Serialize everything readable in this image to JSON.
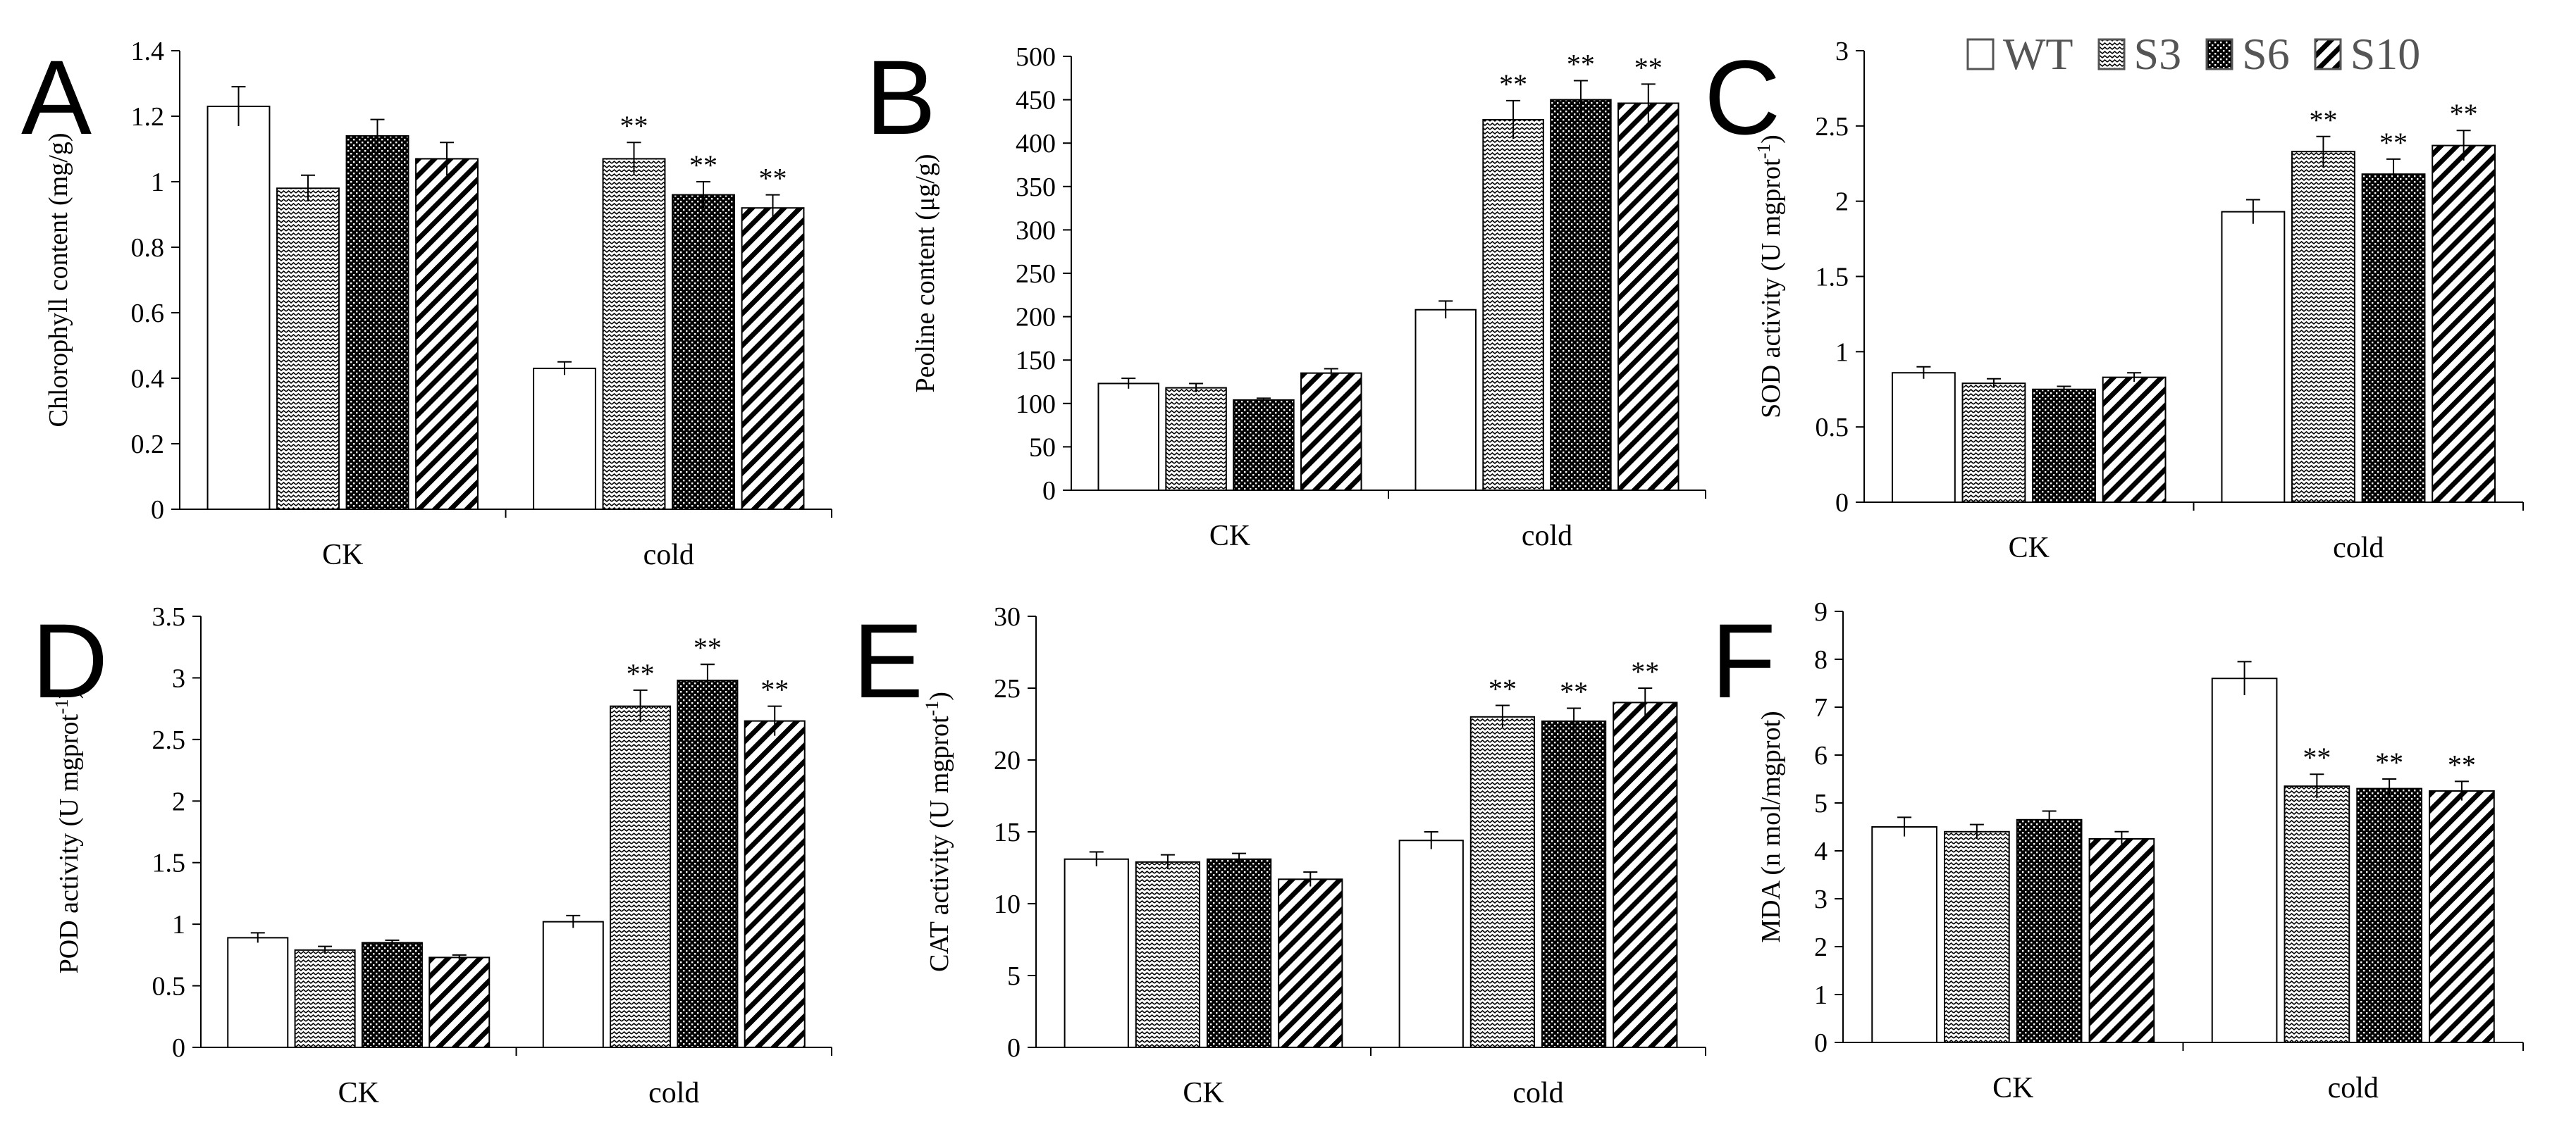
{
  "legend": [
    {
      "name": "WT",
      "pattern": "pat-wt"
    },
    {
      "name": "S3",
      "pattern": "pat-s3"
    },
    {
      "name": "S6",
      "pattern": "pat-s6"
    },
    {
      "name": "S10",
      "pattern": "pat-s10"
    }
  ],
  "colors": {
    "axis": "#000000",
    "bar_stroke": "#000000",
    "text": "#000000",
    "legend_text": "#555555"
  },
  "chart_data": [
    {
      "panel": "A",
      "type": "bar",
      "title": "",
      "ylabel": "Chlorophyll content (mg/g)",
      "xlabel": "",
      "categories": [
        "CK",
        "cold"
      ],
      "ylim": [
        0,
        1.4
      ],
      "yticks": [
        0,
        0.2,
        0.4,
        0.6,
        0.8,
        1,
        1.2,
        1.4
      ],
      "ytick_labels": [
        "0",
        "0.2",
        "0.4",
        "0.6",
        "0.8",
        "1",
        "1.2",
        "1.4"
      ],
      "series": [
        {
          "name": "WT",
          "values": [
            1.23,
            0.43
          ],
          "errors": [
            0.06,
            0.02
          ]
        },
        {
          "name": "S3",
          "values": [
            0.98,
            1.07
          ],
          "errors": [
            0.04,
            0.05
          ]
        },
        {
          "name": "S6",
          "values": [
            1.14,
            0.96
          ],
          "errors": [
            0.05,
            0.04
          ]
        },
        {
          "name": "S10",
          "values": [
            1.07,
            0.92
          ],
          "errors": [
            0.05,
            0.04
          ]
        }
      ],
      "significance": [
        [
          "",
          ""
        ],
        [
          "",
          "**"
        ],
        [
          "",
          "**"
        ],
        [
          "",
          "**"
        ]
      ]
    },
    {
      "panel": "B",
      "type": "bar",
      "title": "",
      "ylabel": "Peoline content (μg/g)",
      "xlabel": "",
      "categories": [
        "CK",
        "cold"
      ],
      "ylim": [
        0,
        500
      ],
      "yticks": [
        0,
        50,
        100,
        150,
        200,
        250,
        300,
        350,
        400,
        450,
        500
      ],
      "ytick_labels": [
        "0",
        "50",
        "100",
        "150",
        "200",
        "250",
        "300",
        "350",
        "400",
        "450",
        "500"
      ],
      "series": [
        {
          "name": "WT",
          "values": [
            123,
            208
          ],
          "errors": [
            6,
            10
          ]
        },
        {
          "name": "S3",
          "values": [
            118,
            427
          ],
          "errors": [
            5,
            22
          ]
        },
        {
          "name": "S6",
          "values": [
            104,
            450
          ],
          "errors": [
            2,
            22
          ]
        },
        {
          "name": "S10",
          "values": [
            135,
            446
          ],
          "errors": [
            5,
            22
          ]
        }
      ],
      "significance": [
        [
          "",
          ""
        ],
        [
          "",
          "**"
        ],
        [
          "",
          "**"
        ],
        [
          "",
          "**"
        ]
      ]
    },
    {
      "panel": "C",
      "type": "bar",
      "title": "",
      "ylabel": "SOD activity (U mgprot",
      "ylabel_sup": "-1",
      "ylabel_end": ")",
      "xlabel": "",
      "categories": [
        "CK",
        "cold"
      ],
      "ylim": [
        0,
        3
      ],
      "yticks": [
        0,
        0.5,
        1,
        1.5,
        2,
        2.5,
        3
      ],
      "ytick_labels": [
        "0",
        "0.5",
        "1",
        "1.5",
        "2",
        "2.5",
        "3"
      ],
      "series": [
        {
          "name": "WT",
          "values": [
            0.86,
            1.93
          ],
          "errors": [
            0.04,
            0.08
          ]
        },
        {
          "name": "S3",
          "values": [
            0.79,
            2.33
          ],
          "errors": [
            0.03,
            0.1
          ]
        },
        {
          "name": "S6",
          "values": [
            0.75,
            2.18
          ],
          "errors": [
            0.02,
            0.1
          ]
        },
        {
          "name": "S10",
          "values": [
            0.83,
            2.37
          ],
          "errors": [
            0.03,
            0.1
          ]
        }
      ],
      "significance": [
        [
          "",
          ""
        ],
        [
          "",
          "**"
        ],
        [
          "",
          "**"
        ],
        [
          "",
          "**"
        ]
      ]
    },
    {
      "panel": "D",
      "type": "bar",
      "title": "",
      "ylabel": "POD activity (U mgprot",
      "ylabel_sup": "-1",
      "ylabel_end": ")",
      "xlabel": "",
      "categories": [
        "CK",
        "cold"
      ],
      "ylim": [
        0,
        3.5
      ],
      "yticks": [
        0,
        0.5,
        1,
        1.5,
        2,
        2.5,
        3,
        3.5
      ],
      "ytick_labels": [
        "0",
        "0.5",
        "1",
        "1.5",
        "2",
        "2.5",
        "3",
        "3.5"
      ],
      "series": [
        {
          "name": "WT",
          "values": [
            0.89,
            1.02
          ],
          "errors": [
            0.04,
            0.05
          ]
        },
        {
          "name": "S3",
          "values": [
            0.79,
            2.77
          ],
          "errors": [
            0.03,
            0.13
          ]
        },
        {
          "name": "S6",
          "values": [
            0.85,
            2.98
          ],
          "errors": [
            0.02,
            0.13
          ]
        },
        {
          "name": "S10",
          "values": [
            0.73,
            2.65
          ],
          "errors": [
            0.02,
            0.12
          ]
        }
      ],
      "significance": [
        [
          "",
          ""
        ],
        [
          "",
          "**"
        ],
        [
          "",
          "**"
        ],
        [
          "",
          "**"
        ]
      ]
    },
    {
      "panel": "E",
      "type": "bar",
      "title": "",
      "ylabel": "CAT activity (U mgprot",
      "ylabel_sup": "-1",
      "ylabel_end": ")",
      "xlabel": "",
      "categories": [
        "CK",
        "cold"
      ],
      "ylim": [
        0,
        30
      ],
      "yticks": [
        0,
        5,
        10,
        15,
        20,
        25,
        30
      ],
      "ytick_labels": [
        "0",
        "5",
        "10",
        "15",
        "20",
        "25",
        "30"
      ],
      "series": [
        {
          "name": "WT",
          "values": [
            13.1,
            14.4
          ],
          "errors": [
            0.5,
            0.6
          ]
        },
        {
          "name": "S3",
          "values": [
            12.9,
            23.0
          ],
          "errors": [
            0.5,
            0.8
          ]
        },
        {
          "name": "S6",
          "values": [
            13.1,
            22.7
          ],
          "errors": [
            0.4,
            0.9
          ]
        },
        {
          "name": "S10",
          "values": [
            11.7,
            24.0
          ],
          "errors": [
            0.5,
            1.0
          ]
        }
      ],
      "significance": [
        [
          "",
          ""
        ],
        [
          "",
          "**"
        ],
        [
          "",
          "**"
        ],
        [
          "",
          "**"
        ]
      ]
    },
    {
      "panel": "F",
      "type": "bar",
      "title": "",
      "ylabel": "MDA (n mol/mgprot)",
      "xlabel": "",
      "categories": [
        "CK",
        "cold"
      ],
      "ylim": [
        0,
        9
      ],
      "yticks": [
        0,
        1,
        2,
        3,
        4,
        5,
        6,
        7,
        8,
        9
      ],
      "ytick_labels": [
        "0",
        "1",
        "2",
        "3",
        "4",
        "5",
        "6",
        "7",
        "8",
        "9"
      ],
      "series": [
        {
          "name": "WT",
          "values": [
            4.5,
            7.6
          ],
          "errors": [
            0.2,
            0.35
          ]
        },
        {
          "name": "S3",
          "values": [
            4.4,
            5.35
          ],
          "errors": [
            0.15,
            0.25
          ]
        },
        {
          "name": "S6",
          "values": [
            4.65,
            5.3
          ],
          "errors": [
            0.18,
            0.2
          ]
        },
        {
          "name": "S10",
          "values": [
            4.25,
            5.25
          ],
          "errors": [
            0.15,
            0.2
          ]
        }
      ],
      "significance": [
        [
          "",
          ""
        ],
        [
          "",
          "**"
        ],
        [
          "",
          "**"
        ],
        [
          "",
          "**"
        ]
      ]
    }
  ]
}
